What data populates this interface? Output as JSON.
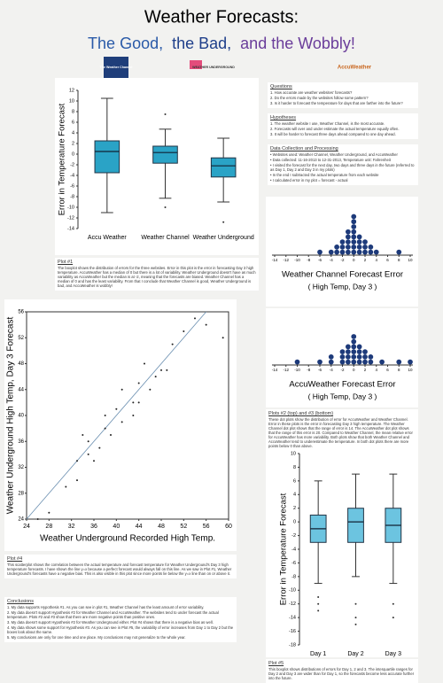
{
  "header": {
    "title": "Weather Forecasts:",
    "subtitle": [
      {
        "text": "The Good,",
        "color": "#2a5aa8"
      },
      {
        "text": "the Bad,",
        "color": "#1f3f8a"
      },
      {
        "text": "and the Wobbly!",
        "color": "#6a3d9a"
      }
    ],
    "logos": [
      "The Weather Channel",
      "WEATHER UNDERGROUND",
      "AccuWeather"
    ]
  },
  "sections": [
    {
      "heading": "Questions",
      "lines": [
        "1. How accurate are weather websites' forecasts?",
        "2. Do the errors made by the websites follow some pattern?",
        "3. Is it harder to forecast the temperature for days that are farther into the future?"
      ]
    },
    {
      "heading": "Hypotheses",
      "lines": [
        "1. The weather website I use, Weather Channel, is the most accurate.",
        "2. Forecasts will over and under estimate the actual temperature equally often.",
        "3. It will be harder to forecast three days ahead compared to one day ahead."
      ]
    },
    {
      "heading": "Data Collection and Processing",
      "lines": [
        "• Websites used: Weather Channel, Weather Underground, and AccuWeather",
        "• Data collected: 11-16-2013 to 12-31-2013, Temperature unit: Fahrenheit",
        "• I visited the forecast for the next day, two days and three days in the future (referred to as Day 1, Day 2 and Day 3 in my plots)",
        "• In the end I subtracted the actual temperature from each website",
        "• I calculated error in my plot = forecast - actual"
      ]
    },
    {
      "heading": "Plot #1",
      "lines": [
        "The boxplot shows the distribution of errors for the three websites. Error in this plot is the error in forecasting Day 3 high temperature. AccuWeather has a median of 0 but there is a lot of variability. Weather Underground doesn't have as much variability as AccuWeather but the median is at -2, meaning that the forecasts are biased. Weather Channel has a median of 0 and has the least variability. From that I conclude that Weather Channel is good, Weather Underground is bad, and AccuWeather is wobbly!"
      ]
    },
    {
      "heading": "Plots #2 (top) and #3 (bottom)",
      "lines": [
        "These dot plots show the distribution of error for AccuWeather and Weather Channel. Error in these plots is the error in forecasting Day 3 high temperature. The Weather Channel dot plot shows that the range of error is 14. The AccuWeather dot plot shows that the range of this error is 20. Compared to Weather Channel, the mean relative error for AccuWeather has more variability. Both plots show that both Weather Channel and AccuWeather tend to underestimate the temperature. In both dot plots there are more points below 0 than above."
      ]
    },
    {
      "heading": "Plot #4",
      "lines": [
        "This scatterplot shows the correlation between the actual temperature and forecast temperature for Weather Underground's Day 3 high temperature forecasts. I have shown the line y=x because a perfect forecast would always fall on this line. As we saw in Plot #1, Weather Underground's forecasts have a negative bias. This is also visible in this plot since more points lie below the y=x line than on or above it."
      ]
    },
    {
      "heading": "Conclusions",
      "lines": [
        "1. My data supports Hypothesis #1. As you can see in plot #1, Weather Channel has the least amount of error variability.",
        "2. My data doesn't support Hypothesis #2 for Weather Channel and AccuWeather. The websites tend to under forecast the actual temperature. Plots #2 and #3 show that there are more negative points than positive ones.",
        "3. My data doesn't support Hypothesis #2 for Weather Underground either. Plot #4 shows that there is a negative bias as well.",
        "4. My data shows some support for Hypothesis #3. As you can see in Plot #5, the variability of error increases from Day 1 to Day 2 but the boxes look about the same.",
        "5. My conclusions are only for one time and one place. My conclusions may not generalize to the whole year."
      ]
    },
    {
      "heading": "Plot #5",
      "lines": [
        "This boxplot shows distributions of errors for Day 1, 2 and 3. The interquartile ranges for Day 2 and Day 3 are wider than for Day 1, so the forecasts become less accurate further into the future."
      ]
    }
  ],
  "chart_data": [
    {
      "type": "box",
      "ylabel": "Error in Temperature Forecast",
      "categories": [
        "Accu Weather",
        "Weather Channel",
        "Weather Underground"
      ],
      "color": "#2aa3c6",
      "boxes": [
        {
          "whisker_low": -11,
          "q1": -3.5,
          "median": 0.5,
          "q3": 2.5,
          "whisker_high": 10.5,
          "outliers": []
        },
        {
          "whisker_low": -8.3,
          "q1": -1.7,
          "median": 0.3,
          "q3": 1.5,
          "whisker_high": 4.7,
          "outliers": [
            7.5,
            -10
          ]
        },
        {
          "whisker_low": -9,
          "q1": -4.3,
          "median": -2.2,
          "q3": -0.7,
          "whisker_high": 3,
          "outliers": [
            -12.8
          ]
        }
      ],
      "ylim": [
        -14,
        12
      ],
      "yticks": [
        -14,
        -12,
        -10,
        -8,
        -6,
        -4,
        -2,
        0,
        2,
        4,
        6,
        8,
        10,
        12
      ]
    },
    {
      "type": "dot",
      "title": "Weather Channel Forecast Error",
      "subtitle": "( High Temp, Day 3 )",
      "color": "#1d3a7a",
      "x": [
        -6,
        -4,
        -3,
        -2,
        -1,
        0,
        1,
        2,
        3,
        4,
        8
      ],
      "values": [
        1,
        1,
        2,
        3,
        5,
        8,
        4,
        3,
        2,
        1,
        1
      ],
      "xlim": [
        -14,
        10
      ],
      "xticks": [
        -14,
        -12,
        -10,
        -8,
        -6,
        -4,
        -2,
        0,
        2,
        4,
        6,
        8,
        10
      ]
    },
    {
      "type": "scatter",
      "xlabel": "Weather Underground Recorded High Temp.",
      "ylabel": "Weather Underground High Temp, Day 3 Forecast",
      "color": "#222",
      "diagonal": true,
      "x": [
        26,
        28,
        31,
        33,
        33,
        34,
        35,
        35,
        36,
        37,
        38,
        38,
        39,
        40,
        41,
        41,
        43,
        43,
        44,
        44,
        45,
        46,
        47,
        48,
        49,
        50,
        52,
        54,
        56,
        59
      ],
      "y": [
        24,
        25,
        29,
        30,
        33,
        37,
        36,
        34,
        33,
        35,
        40,
        38,
        37,
        41,
        39,
        44,
        40,
        42,
        45,
        42,
        48,
        44,
        46,
        47,
        47,
        51,
        53,
        55,
        54,
        52
      ],
      "xlim": [
        24,
        60
      ],
      "xticks": [
        24,
        28,
        32,
        36,
        40,
        44,
        48,
        52,
        56,
        60
      ],
      "ylim": [
        24,
        56
      ],
      "yticks": [
        24,
        28,
        32,
        36,
        40,
        44,
        48,
        52,
        56
      ]
    },
    {
      "type": "dot",
      "title": "AccuWeather Forecast Error",
      "subtitle": "( High Temp, Day 3 )",
      "color": "#1d3a7a",
      "x": [
        -10,
        -6,
        -4,
        -2,
        -1,
        0,
        1,
        2,
        3,
        5,
        8,
        10
      ],
      "values": [
        1,
        1,
        2,
        3,
        4,
        6,
        4,
        3,
        2,
        1,
        1,
        1
      ],
      "xlim": [
        -14,
        10
      ],
      "xticks": [
        -14,
        -12,
        -10,
        -8,
        -6,
        -4,
        -2,
        0,
        2,
        4,
        6,
        8,
        10
      ]
    },
    {
      "type": "box",
      "ylabel": "Error in Temperature Forecast",
      "categories": [
        "Day 1",
        "Day 2",
        "Day 3"
      ],
      "color": "#6cc4e0",
      "boxes": [
        {
          "whisker_low": -9,
          "q1": -3,
          "median": -1,
          "q3": 1,
          "whisker_high": 6,
          "outliers": [
            -11,
            -12,
            -13
          ]
        },
        {
          "whisker_low": -8,
          "q1": -3,
          "median": 0,
          "q3": 2,
          "whisker_high": 7,
          "outliers": [
            -12,
            -14,
            -15
          ]
        },
        {
          "whisker_low": -9,
          "q1": -3,
          "median": -0.5,
          "q3": 2,
          "whisker_high": 7,
          "outliers": [
            -12,
            -14
          ]
        }
      ],
      "ylim": [
        -18,
        10
      ],
      "yticks": [
        -18,
        -16,
        -14,
        -12,
        -10,
        -8,
        -6,
        -4,
        -2,
        0,
        2,
        4,
        6,
        8,
        10
      ]
    }
  ]
}
